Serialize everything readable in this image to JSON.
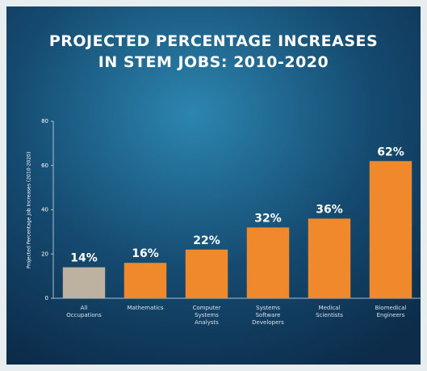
{
  "chart_data": {
    "type": "bar",
    "title": [
      "PROJECTED PERCENTAGE INCREASES",
      "IN STEM JOBS: 2010-2020"
    ],
    "y_label": "Projected Percentage Job Increases (2010-2020)",
    "categories": [
      "All Occupations",
      "Mathematics",
      "Computer Systems Analysts",
      "Systems Software Developers",
      "Medical Scientists",
      "Biomedical Engineers"
    ],
    "values": [
      14,
      16,
      22,
      32,
      36,
      62
    ],
    "value_labels": [
      "14%",
      "16%",
      "22%",
      "32%",
      "36%",
      "62%"
    ],
    "colors": [
      "#bdb19f",
      "#f0892c",
      "#f0892c",
      "#f0892c",
      "#f0892c",
      "#f0892c"
    ],
    "ylim": [
      0,
      80
    ],
    "yticks": [
      0,
      20,
      40,
      60,
      80
    ],
    "grid": false
  }
}
